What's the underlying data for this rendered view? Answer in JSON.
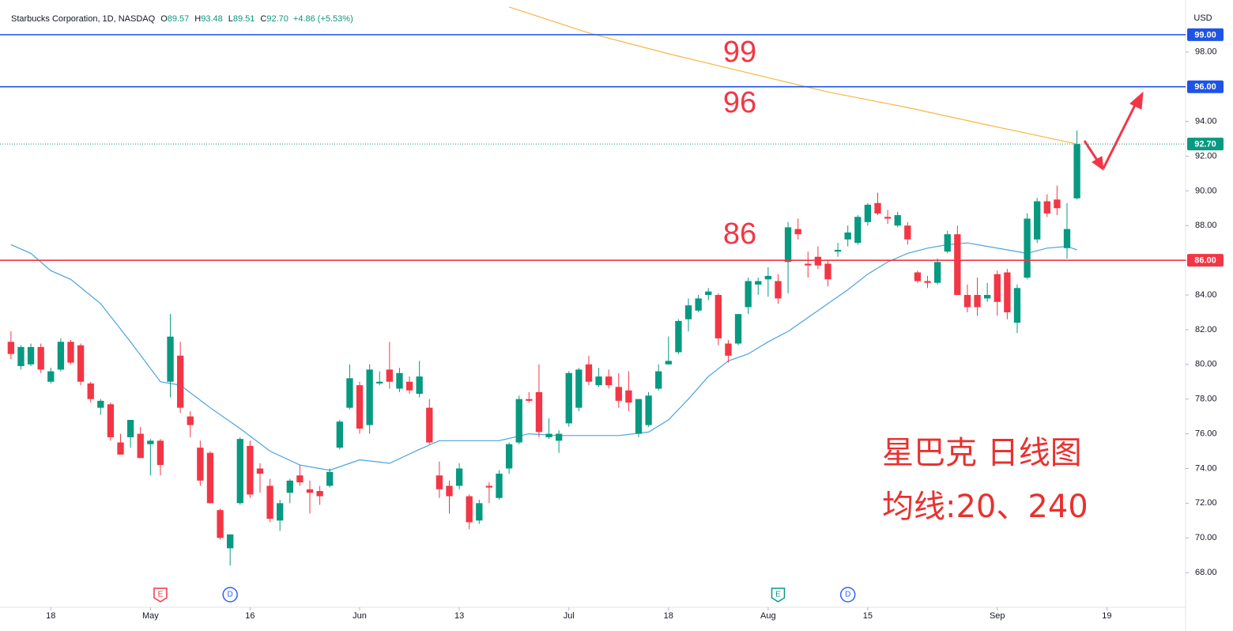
{
  "header": {
    "title": "Starbucks Corporation, 1D, NASDAQ",
    "ohlc": [
      {
        "label": "O",
        "value": "89.57"
      },
      {
        "label": "H",
        "value": "93.48"
      },
      {
        "label": "L",
        "value": "89.51"
      },
      {
        "label": "C",
        "value": "92.70"
      }
    ],
    "change": "+4.86 (+5.53%)"
  },
  "chart_data": {
    "type": "candlestick",
    "currency": "USD",
    "up_color": "#089981",
    "down_color": "#f23645",
    "open": [
      81.3,
      79.9,
      80.0,
      81.0,
      79.0,
      79.7,
      81.3,
      81.1,
      78.9,
      77.5,
      77.7,
      75.5,
      75.8,
      76.0,
      75.4,
      75.6,
      79.0,
      80.5,
      77.0,
      75.2,
      74.9,
      71.6,
      69.4,
      72.0,
      75.3,
      74.0,
      73.0,
      71.0,
      72.6,
      73.6,
      72.8,
      72.7,
      73.0,
      75.2,
      77.5,
      78.8,
      76.5,
      78.9,
      79.7,
      78.6,
      79.0,
      78.3,
      77.5,
      73.6,
      73.0,
      73.0,
      72.4,
      71.0,
      73.0,
      72.3,
      74.0,
      75.5,
      78.0,
      78.4,
      75.8,
      75.6,
      76.6,
      77.5,
      80.0,
      78.8,
      79.3,
      78.7,
      78.5,
      76.0,
      76.5,
      78.6,
      80.0,
      80.7,
      82.6,
      83.1,
      84.0,
      84.0,
      81.2,
      81.2,
      83.3,
      84.6,
      84.9,
      84.8,
      85.9,
      87.8,
      85.8,
      86.2,
      85.8,
      86.5,
      87.2,
      87.0,
      88.2,
      89.3,
      88.5,
      88.0,
      88.0,
      85.3,
      84.8,
      84.7,
      86.5,
      87.5,
      84.0,
      84.0,
      83.8,
      85.2,
      85.3,
      82.4,
      85.0,
      87.2,
      89.4,
      89.5,
      86.7,
      89.57
    ],
    "high": [
      81.9,
      81.1,
      81.2,
      81.2,
      79.8,
      81.5,
      81.4,
      81.2,
      79.0,
      78.0,
      77.8,
      76.0,
      76.8,
      76.4,
      75.7,
      75.7,
      82.9,
      81.3,
      77.3,
      75.6,
      75.0,
      71.7,
      70.2,
      75.8,
      75.6,
      74.3,
      73.4,
      72.2,
      73.4,
      74.2,
      73.3,
      73.0,
      74.0,
      76.8,
      80.0,
      79.0,
      80.0,
      79.6,
      81.3,
      79.8,
      79.3,
      80.2,
      78.0,
      74.4,
      73.3,
      74.3,
      72.5,
      72.2,
      73.2,
      73.9,
      75.5,
      78.2,
      78.4,
      80.0,
      76.9,
      76.2,
      79.6,
      79.8,
      80.5,
      79.8,
      79.7,
      79.5,
      79.6,
      78.0,
      78.4,
      80.0,
      81.6,
      82.6,
      83.8,
      84.0,
      84.4,
      84.1,
      81.4,
      82.9,
      85.0,
      85.0,
      85.6,
      85.2,
      88.2,
      88.4,
      86.5,
      86.8,
      86.0,
      87.0,
      88.0,
      88.6,
      89.3,
      89.9,
      88.9,
      88.8,
      88.2,
      85.4,
      85.1,
      86.1,
      87.7,
      88.0,
      84.6,
      85.0,
      84.7,
      85.4,
      85.5,
      84.6,
      88.7,
      89.6,
      89.8,
      90.3,
      89.3,
      93.48
    ],
    "low": [
      80.3,
      79.7,
      79.9,
      79.5,
      78.9,
      79.6,
      80.0,
      78.8,
      77.8,
      77.1,
      75.6,
      74.8,
      75.2,
      74.6,
      73.6,
      73.6,
      78.1,
      77.2,
      75.8,
      73.0,
      72.0,
      69.9,
      68.4,
      71.9,
      72.3,
      72.6,
      70.9,
      70.4,
      72.0,
      73.0,
      71.4,
      71.9,
      72.9,
      75.1,
      77.4,
      76.0,
      76.0,
      78.8,
      78.6,
      78.4,
      78.3,
      78.1,
      75.4,
      72.3,
      71.4,
      72.8,
      70.5,
      70.8,
      72.0,
      72.2,
      73.7,
      75.4,
      77.8,
      75.8,
      75.7,
      74.9,
      76.4,
      77.3,
      78.8,
      78.7,
      78.6,
      77.5,
      77.3,
      75.8,
      76.4,
      78.5,
      80.0,
      80.6,
      81.9,
      83.0,
      83.7,
      81.1,
      80.1,
      81.1,
      82.9,
      84.0,
      83.9,
      83.5,
      84.1,
      87.2,
      85.0,
      85.5,
      84.5,
      86.2,
      86.8,
      86.9,
      88.0,
      88.6,
      88.1,
      87.9,
      86.9,
      84.7,
      84.4,
      84.6,
      86.4,
      84.0,
      83.0,
      82.8,
      83.6,
      82.8,
      82.6,
      81.8,
      84.9,
      87.0,
      88.5,
      88.6,
      86.1,
      89.51
    ],
    "close": [
      80.6,
      81.0,
      81.0,
      79.7,
      79.6,
      81.3,
      80.1,
      79.0,
      78.0,
      77.9,
      75.8,
      74.8,
      76.8,
      74.6,
      75.6,
      74.2,
      81.6,
      77.5,
      76.5,
      73.3,
      72.0,
      70.0,
      70.2,
      75.7,
      72.5,
      73.7,
      71.1,
      72.0,
      73.3,
      73.2,
      72.6,
      72.4,
      73.8,
      76.7,
      79.2,
      76.3,
      79.7,
      79.0,
      79.0,
      79.5,
      78.5,
      79.3,
      75.5,
      72.8,
      72.4,
      74.0,
      70.9,
      72.0,
      72.9,
      73.7,
      75.4,
      78.0,
      77.9,
      76.1,
      76.0,
      76.0,
      79.5,
      79.7,
      79.0,
      79.3,
      78.8,
      77.9,
      77.8,
      78.0,
      78.2,
      79.6,
      80.2,
      82.5,
      83.4,
      83.8,
      84.2,
      81.5,
      80.5,
      82.9,
      84.8,
      84.8,
      85.1,
      83.8,
      87.9,
      87.5,
      85.7,
      85.7,
      84.9,
      86.6,
      87.6,
      88.5,
      89.2,
      88.7,
      88.4,
      88.6,
      87.2,
      84.8,
      84.7,
      85.9,
      87.5,
      84.0,
      83.3,
      83.3,
      84.0,
      83.6,
      83.0,
      84.4,
      88.4,
      89.4,
      88.7,
      89.0,
      87.8,
      92.7
    ],
    "moving_averages": [
      {
        "name": "MA 20",
        "color": "#4aa3df",
        "x": [
          0,
          2,
          4,
          6,
          9,
          12,
          15,
          17,
          20,
          23,
          26,
          29,
          32,
          35,
          38,
          41,
          43,
          46,
          49,
          52,
          55,
          58,
          61,
          64,
          66,
          68,
          70,
          72,
          74,
          76,
          78,
          80,
          82,
          84,
          86,
          88,
          90,
          92,
          94,
          96,
          98,
          100,
          102,
          104,
          106,
          107
        ],
        "values": [
          86.9,
          86.4,
          85.4,
          84.9,
          83.5,
          81.3,
          79.0,
          78.8,
          77.5,
          76.3,
          75.0,
          74.2,
          73.9,
          74.5,
          74.3,
          75.1,
          75.6,
          75.6,
          75.6,
          76.0,
          75.9,
          75.9,
          75.9,
          76.1,
          76.8,
          78.0,
          79.3,
          80.2,
          80.6,
          81.3,
          81.9,
          82.7,
          83.5,
          84.3,
          85.2,
          85.9,
          86.4,
          86.7,
          86.9,
          87.0,
          86.8,
          86.6,
          86.4,
          86.7,
          86.8,
          86.6
        ]
      },
      {
        "name": "MA 240",
        "color": "#f5b841",
        "x": [
          50,
          58,
          66,
          74,
          82,
          90,
          98,
          107
        ],
        "values": [
          100.6,
          99.1,
          97.9,
          96.8,
          95.7,
          94.8,
          93.8,
          92.7
        ]
      }
    ],
    "price_lines": [
      {
        "value": 99,
        "label": "99.00",
        "color": "#1e53e5"
      },
      {
        "value": 96,
        "label": "96.00",
        "color": "#1e53e5"
      },
      {
        "value": 86,
        "label": "86.00",
        "color": "#f23645"
      }
    ],
    "last_price": {
      "value": 92.7,
      "label": "92.70",
      "color": "#089981"
    },
    "xlim": [
      -1.1,
      117.9
    ],
    "xticks": [
      {
        "value": 4,
        "label": "18"
      },
      {
        "value": 14,
        "label": "May"
      },
      {
        "value": 24,
        "label": "16"
      },
      {
        "value": 35,
        "label": "Jun"
      },
      {
        "value": 45,
        "label": "13"
      },
      {
        "value": 56,
        "label": "Jul"
      },
      {
        "value": 66,
        "label": "18"
      },
      {
        "value": 76,
        "label": "Aug"
      },
      {
        "value": 86,
        "label": "15"
      },
      {
        "value": 99,
        "label": "Sep"
      },
      {
        "value": 110,
        "label": "19"
      }
    ],
    "ylim": [
      66,
      101
    ],
    "yticks": [
      {
        "value": 68,
        "label": "68.00"
      },
      {
        "value": 70,
        "label": "70.00"
      },
      {
        "value": 72,
        "label": "72.00"
      },
      {
        "value": 74,
        "label": "74.00"
      },
      {
        "value": 76,
        "label": "76.00"
      },
      {
        "value": 78,
        "label": "78.00"
      },
      {
        "value": 80,
        "label": "80.00"
      },
      {
        "value": 82,
        "label": "82.00"
      },
      {
        "value": 84,
        "label": "84.00"
      },
      {
        "value": 86,
        "label": "86.00"
      },
      {
        "value": 88,
        "label": "88.00"
      },
      {
        "value": 90,
        "label": "90.00"
      },
      {
        "value": 92,
        "label": "92.00"
      },
      {
        "value": 94,
        "label": "94.00"
      },
      {
        "value": 98,
        "label": "98.00"
      }
    ],
    "events": [
      {
        "x": 15,
        "label": "E",
        "color": "#f23645"
      },
      {
        "x": 22,
        "label": "D",
        "color": "#2962ff"
      },
      {
        "x": 77,
        "label": "E",
        "color": "#089981"
      },
      {
        "x": 84,
        "label": "D",
        "color": "#2962ff"
      }
    ],
    "annotations": [
      "99",
      "96",
      "86",
      "星巴克 日线图",
      "均线:20、240"
    ]
  }
}
